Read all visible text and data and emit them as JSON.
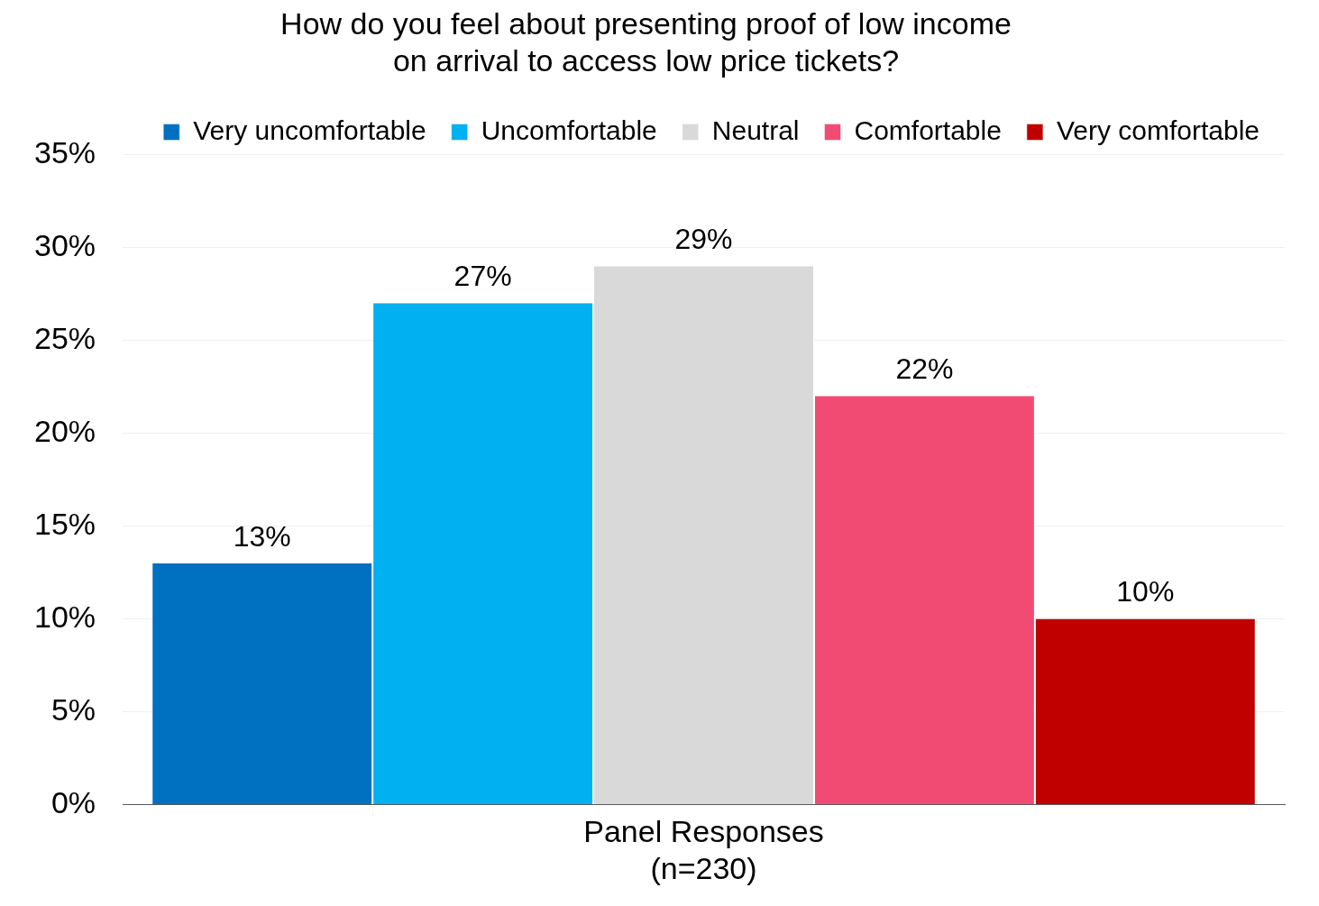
{
  "chart_data": {
    "type": "bar",
    "title": "How do you feel about presenting proof of low income\non arrival to access low price tickets?",
    "categories": [
      "Panel Responses\n(n=230)"
    ],
    "series": [
      {
        "name": "Very uncomfortable",
        "color": "#0070c0",
        "values": [
          13
        ],
        "value_labels": [
          "13%"
        ]
      },
      {
        "name": "Uncomfortable",
        "color": "#00b0f0",
        "values": [
          27
        ],
        "value_labels": [
          "27%"
        ]
      },
      {
        "name": "Neutral",
        "color": "#d9d9d9",
        "values": [
          29
        ],
        "value_labels": [
          "29%"
        ]
      },
      {
        "name": "Comfortable",
        "color": "#f24b73",
        "values": [
          22
        ],
        "value_labels": [
          "22%"
        ]
      },
      {
        "name": "Very comfortable",
        "color": "#c00000",
        "values": [
          10
        ],
        "value_labels": [
          "10%"
        ]
      }
    ],
    "ylim": [
      0,
      35
    ],
    "yticks": [
      {
        "value": 0,
        "label": "0%"
      },
      {
        "value": 5,
        "label": "5%"
      },
      {
        "value": 10,
        "label": "10%"
      },
      {
        "value": 15,
        "label": "15%"
      },
      {
        "value": 20,
        "label": "20%"
      },
      {
        "value": 25,
        "label": "25%"
      },
      {
        "value": 30,
        "label": "30%"
      },
      {
        "value": 35,
        "label": "35%"
      }
    ],
    "grid": "y",
    "legend": "top"
  }
}
